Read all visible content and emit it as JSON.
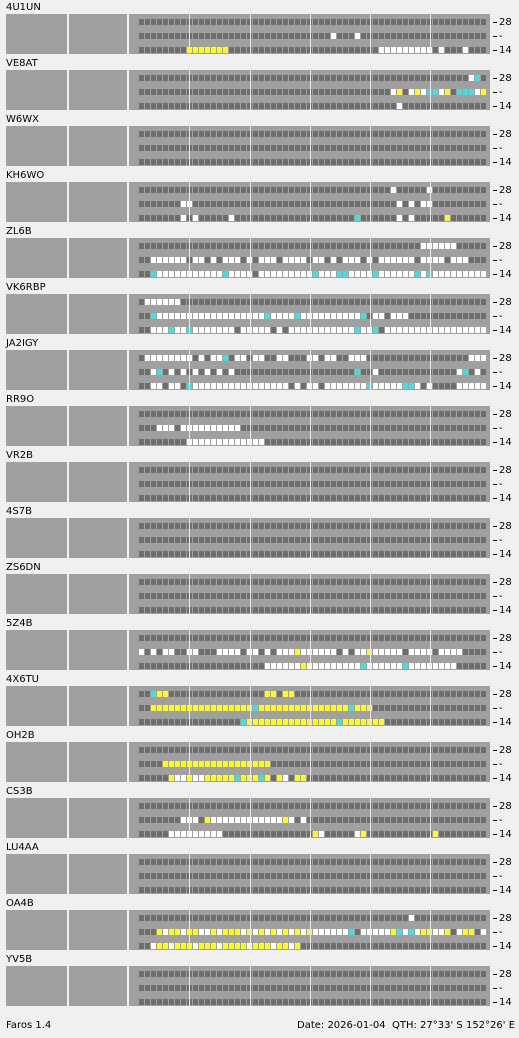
{
  "axis": {
    "top_label": "28",
    "mid_label": "-",
    "bottom_label": "14"
  },
  "status": {
    "app_version": "Faros 1.4",
    "date": "Date: 2026-01-04",
    "qth": "QTH: 27°33' S   152°26' E"
  },
  "colors": {
    "cell_off": "#6e6e6e",
    "weak": "#ffffff",
    "medium": "#ffff00",
    "strong": "#33e6e6",
    "panel": "#a0a0a0"
  },
  "state_legend": {
    "0": "no-signal",
    "1": "white",
    "2": "yellow",
    "3": "cyan"
  },
  "stations": [
    {
      "call": "4U1UN",
      "rows": [
        "",
        "32:1,36:1",
        "8:2,9:2,10:2,11:2,12:2,13:2,14:2,40:1,41:1,42:1,43:1,44:1,45:1,46:1,47:1,48:1,50:1,54:1"
      ]
    },
    {
      "call": "VE8AT",
      "rows": [
        "55:1,56:3",
        "42:1,43:2,45:1,46:2,47:1,48:3,49:3,50:1,51:2,53:3,54:3,55:3,56:1,57:2,58:3",
        "43:1"
      ]
    },
    {
      "call": "W6WX",
      "rows": [
        "",
        "",
        ""
      ]
    },
    {
      "call": "KH6WO",
      "rows": [
        "42:1,48:1",
        "7:1,8:1,43:1,45:1,47:1,48:1",
        "7:1,9:1,15:1,36:3,43:1,45:1,51:2"
      ]
    },
    {
      "call": "ZL6B",
      "rows": [
        "47:1,48:1,49:1,50:1,51:1,52:1",
        "2:1,3:1,4:1,5:1,6:1,7:1,9:1,10:1,12:1,14:1,15:1,16:1,18:1,20:1,21:1,22:1,24:1,25:1,26:1,27:1,29:1,30:1,32:1,34:1,35:1,36:1,38:1,40:1,41:1,42:1,43:1,44:1,45:1,47:1,48:1,49:1,50:1,52:1,53:1,54:1",
        "2:3,3:1,4:1,5:1,6:1,7:1,8:1,9:1,10:1,11:1,12:1,13:1,14:3,15:1,16:1,17:1,18:1,20:1,21:1,22:1,23:1,24:1,25:1,26:1,27:1,28:1,29:3,30:1,31:1,32:1,33:3,34:3,35:1,36:1,37:1,38:1,39:3,40:1,41:1,42:1,43:1,44:1,45:1,46:3,47:1,48:3,49:1,50:1,51:1,52:1,53:1,54:1,55:1,56:1,57:1,58:1"
      ]
    },
    {
      "call": "VK6RBP",
      "rows": [
        "1:1,2:1,3:1,4:1,5:1,6:1",
        "2:3,3:1,4:1,5:1,6:1,7:1,8:1,9:1,10:1,11:1,12:1,13:1,14:1,15:1,16:1,17:1,18:1,19:1,20:1,21:3,22:1,23:1,24:1,25:1,26:3,27:1,28:1,29:1,30:1,31:1,32:1,33:1,34:1,35:1,36:1,37:3,39:1,40:1,42:1,43:1,44:1",
        "2:1,3:1,4:1,5:3,6:1,7:1,8:3,9:1,10:1,11:1,12:1,13:1,14:1,15:1,17:1,18:1,19:1,20:1,21:1,23:1,25:1,26:1,27:1,28:1,29:1,30:1,31:1,32:1,33:1,34:1,35:1,36:3,37:1,38:1,39:3,41:1,42:1,43:1,44:1,45:1,46:1,47:1,48:1,49:1,50:1,51:1,52:1,53:1,54:1,55:1,56:1,57:1,58:1"
      ]
    },
    {
      "call": "JA2IGY",
      "rows": [
        "1:1,2:1,3:1,4:1,5:1,6:1,7:1,8:1,10:1,12:1,13:1,14:3,16:1,17:1,19:1,20:1,23:1,24:1,28:1,29:1,31:1,32:1,35:1,36:1,37:1,55:1,56:1,57:1,58:1",
        "2:1,3:3,5:1,7:1,9:1,11:1,13:1,15:1,36:3,39:1,53:1,54:3,56:1",
        "2:1,3:1,5:1,6:1,8:3,9:1,10:1,11:1,12:1,13:1,14:1,15:1,16:1,17:1,18:1,19:1,20:1,21:1,22:1,23:1,24:1,26:1,28:1,29:1,31:1,32:1,33:1,34:1,35:1,36:1,37:1,38:3,39:1,40:1,41:1,42:1,43:1,44:3,45:3,46:1,48:1,53:1,54:1,55:1,56:1,57:1,58:1"
      ]
    },
    {
      "call": "RR9O",
      "rows": [
        "",
        "3:1,4:1,5:1,7:1,8:1,9:1,10:1,11:1,12:1,13:1,14:1,15:1,16:1",
        "8:1,9:1,10:1,11:1,12:1,13:1,14:1,15:1,16:1,17:1,18:1,19:1,20:1"
      ]
    },
    {
      "call": "VR2B",
      "rows": [
        "",
        "",
        ""
      ]
    },
    {
      "call": "4S7B",
      "rows": [
        "",
        "",
        ""
      ]
    },
    {
      "call": "ZS6DN",
      "rows": [
        "",
        "",
        ""
      ]
    },
    {
      "call": "5Z4B",
      "rows": [
        "",
        "0:1,2:1,4:1,5:1,8:1,9:1,13:1,14:1,15:1,16:1,18:1,19:1,21:1,23:1,24:1,25:1,26:2,27:1,28:1,29:1,30:1,31:1,32:1,34:1,36:1,37:1,38:2,39:1,40:1,41:1,42:1,43:1,45:1,46:1,47:1,48:1,50:1,51:1,52:1,53:1",
        "21:1,22:1,23:1,24:1,25:1,26:1,27:2,28:1,29:1,30:1,31:1,32:1,33:1,34:1,35:1,36:1,37:3,38:1,39:1,40:1,41:1,42:1,43:1,44:3,45:1,46:1,47:1,48:1,49:1,50:1,51:1,52:1"
      ]
    },
    {
      "call": "4X6TU",
      "rows": [
        "2:3,3:2,4:2,21:2,22:2,24:2,25:2",
        "2:2,3:2,4:2,5:2,6:2,7:2,8:2,9:2,10:2,11:2,12:2,13:2,14:2,15:2,16:2,17:2,18:2,19:3,20:2,21:2,22:2,23:2,24:2,25:2,26:2,27:2,28:2,29:2,30:2,31:2,32:2,33:2,34:2,35:3,36:2,37:2,38:2",
        "17:3,18:2,19:2,20:2,21:2,22:2,23:2,24:2,25:2,26:2,27:2,28:2,29:2,30:2,31:2,32:2,33:3,34:2,35:2,36:2,37:2,38:2,39:2,40:2"
      ]
    },
    {
      "call": "OH2B",
      "rows": [
        "",
        "4:2,5:2,6:2,7:2,8:2,9:2,10:2,11:2,12:2,13:2,14:2,15:2,16:2,17:2,18:2,19:2,20:2,21:2",
        "5:2,6:1,7:1,8:2,9:1,10:1,11:2,12:2,13:2,14:2,15:2,16:3,17:2,18:2,19:2,20:3,21:2,23:2,24:1,26:2,27:2"
      ]
    },
    {
      "call": "CS3B",
      "rows": [
        "",
        "7:1,8:1,9:1,11:2,12:1,13:1,14:1,15:1,16:1,17:1,18:1,19:1,20:1,21:1,22:1,23:1,24:2,25:1,27:1",
        "5:1,6:1,7:1,8:1,9:1,10:1,11:1,12:1,13:1,29:2,30:1,36:1,37:2,49:2,58:2"
      ]
    },
    {
      "call": "LU4AA",
      "rows": [
        "",
        "",
        ""
      ]
    },
    {
      "call": "OA4B",
      "rows": [
        "45:1",
        "3:2,4:1,5:2,6:2,7:1,8:2,9:2,10:1,11:1,12:2,13:1,14:2,15:2,16:2,17:1,18:2,19:1,20:2,21:1,22:2,23:1,24:2,25:1,26:2,27:1,28:2,29:1,30:1,31:1,32:1,33:1,34:1,35:3,37:1,38:1,39:1,40:1,41:1,42:2,43:3,44:1,45:3,46:1,47:2,48:2,49:1,50:1,51:2,53:1,54:2,55:2,57:1",
        "2:1,3:2,4:2,5:1,6:2,7:2,8:2,9:1,10:2,11:2,12:2,13:1,14:2,15:2,16:2,17:2,18:1,19:2,20:2,21:2,22:1,23:2,24:2,25:1,26:2"
      ]
    },
    {
      "call": "YV5B",
      "rows": [
        "",
        "",
        ""
      ]
    }
  ]
}
